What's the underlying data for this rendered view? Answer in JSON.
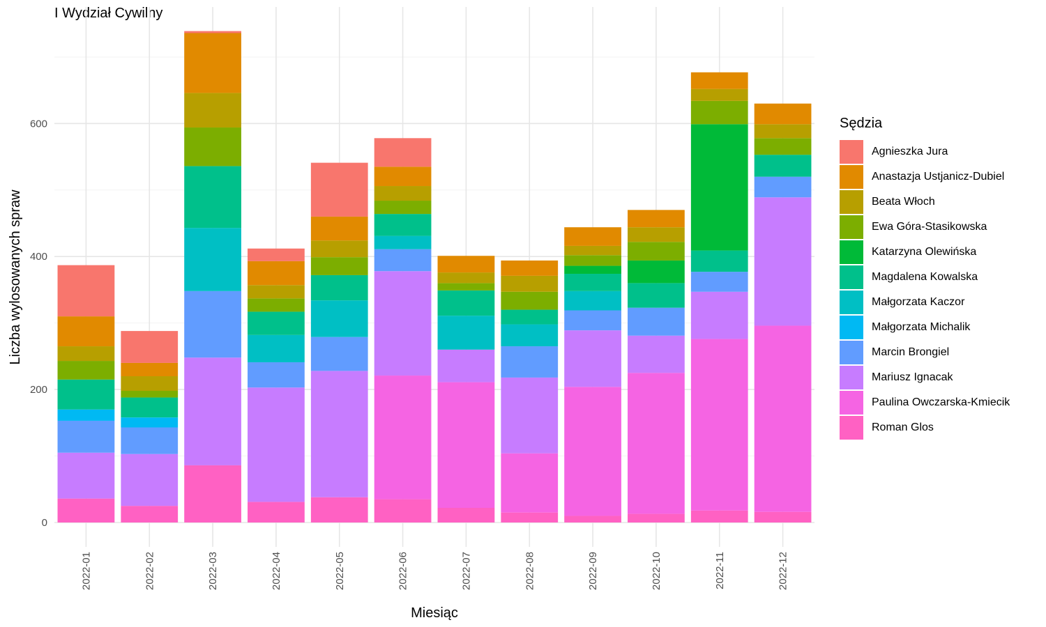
{
  "chart_data": {
    "type": "bar",
    "stacked": true,
    "title": "I Wydział Cywilny",
    "xlabel": "Miesiąc",
    "ylabel": "Liczba wylosowanych spraw",
    "ylim": [
      0,
      740
    ],
    "yticks": [
      0,
      200,
      400,
      600
    ],
    "grid": true,
    "legend_position": "right",
    "legend_title": "Sędzia",
    "categories": [
      "2022-01",
      "2022-02",
      "2022-03",
      "2022-04",
      "2022-05",
      "2022-06",
      "2022-07",
      "2022-08",
      "2022-09",
      "2022-10",
      "2022-11",
      "2022-12"
    ],
    "series": [
      {
        "name": "Roman Glos",
        "color": "#FF61C3",
        "values": [
          36,
          25,
          86,
          31,
          38,
          35,
          22,
          15,
          10,
          13,
          18,
          16
        ]
      },
      {
        "name": "Paulina Owczarska-Kmiecik",
        "color": "#F564E3",
        "values": [
          0,
          0,
          0,
          0,
          0,
          186,
          189,
          89,
          194,
          212,
          258,
          280
        ]
      },
      {
        "name": "Mariusz Ignacak",
        "color": "#C77CFF",
        "values": [
          69,
          78,
          162,
          172,
          190,
          157,
          49,
          114,
          85,
          56,
          71,
          193
        ]
      },
      {
        "name": "Marcin Brongiel",
        "color": "#619CFF",
        "values": [
          48,
          40,
          100,
          38,
          51,
          33,
          0,
          47,
          30,
          42,
          30,
          31
        ]
      },
      {
        "name": "Małgorzata Michalik",
        "color": "#00B9F3",
        "values": [
          17,
          15,
          0,
          0,
          0,
          0,
          0,
          0,
          0,
          0,
          0,
          0
        ]
      },
      {
        "name": "Małgorzata Kaczor",
        "color": "#00BFC4",
        "values": [
          0,
          0,
          95,
          41,
          55,
          20,
          51,
          33,
          29,
          0,
          0,
          0
        ]
      },
      {
        "name": "Magdalena Kowalska",
        "color": "#00C08B",
        "values": [
          45,
          30,
          93,
          35,
          38,
          33,
          38,
          22,
          26,
          37,
          32,
          33
        ]
      },
      {
        "name": "Katarzyna Olewińska",
        "color": "#00BA38",
        "values": [
          0,
          0,
          0,
          0,
          0,
          0,
          0,
          0,
          12,
          34,
          190,
          0
        ]
      },
      {
        "name": "Ewa Góra-Stasikowska",
        "color": "#7CAE00",
        "values": [
          28,
          10,
          58,
          20,
          27,
          20,
          11,
          27,
          16,
          28,
          35,
          25
        ]
      },
      {
        "name": "Beata Włoch",
        "color": "#B79F00",
        "values": [
          22,
          22,
          52,
          20,
          25,
          22,
          16,
          24,
          14,
          22,
          18,
          21
        ]
      },
      {
        "name": "Anastazja Ustjanicz-Dubiel",
        "color": "#E18A00",
        "values": [
          45,
          20,
          90,
          36,
          36,
          29,
          25,
          23,
          28,
          26,
          25,
          31
        ]
      },
      {
        "name": "Agnieszka Jura",
        "color": "#F8766D",
        "values": [
          77,
          48,
          3,
          19,
          81,
          43,
          0,
          0,
          0,
          0,
          0,
          0
        ]
      }
    ],
    "legend_order": [
      "Agnieszka Jura",
      "Anastazja Ustjanicz-Dubiel",
      "Beata Włoch",
      "Ewa Góra-Stasikowska",
      "Katarzyna Olewińska",
      "Magdalena Kowalska",
      "Małgorzata Kaczor",
      "Małgorzata Michalik",
      "Marcin Brongiel",
      "Mariusz Ignacak",
      "Paulina Owczarska-Kmiecik",
      "Roman Glos"
    ]
  }
}
